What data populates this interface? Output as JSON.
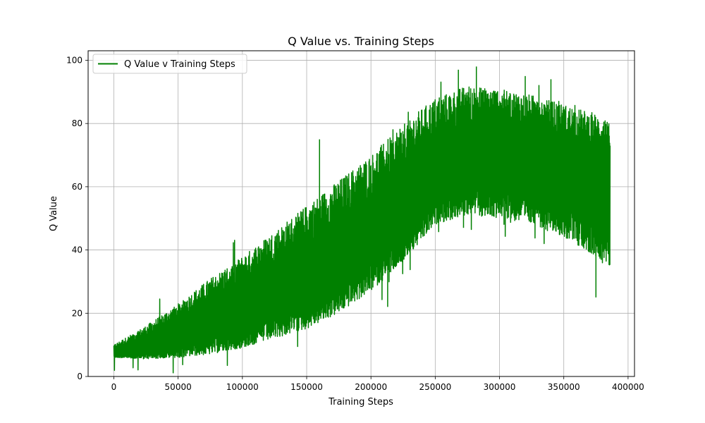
{
  "chart_data": {
    "type": "line",
    "title": "Q Value vs. Training Steps",
    "xlabel": "Training Steps",
    "ylabel": "Q Value",
    "xlim": [
      -20000,
      405000
    ],
    "ylim": [
      0,
      103
    ],
    "xticks": [
      0,
      50000,
      100000,
      150000,
      200000,
      250000,
      300000,
      350000,
      400000
    ],
    "yticks": [
      0,
      20,
      40,
      60,
      80,
      100
    ],
    "grid": true,
    "legend_position": "top-left",
    "series": [
      {
        "name": "Q Value v Training Steps",
        "color": "#008000",
        "x": [
          0,
          25000,
          50000,
          75000,
          100000,
          125000,
          150000,
          175000,
          200000,
          225000,
          250000,
          275000,
          300000,
          325000,
          350000,
          375000,
          386000
        ],
        "upper": [
          10,
          16,
          23,
          31,
          38,
          46,
          54,
          62,
          70,
          80,
          88,
          92,
          91,
          89,
          86,
          83,
          80
        ],
        "mean": [
          7.5,
          9,
          12,
          16,
          20,
          25,
          30,
          36,
          43,
          52,
          62,
          69,
          68,
          66,
          63,
          59,
          58
        ],
        "lower": [
          6,
          5.5,
          6,
          7,
          9,
          12,
          15,
          20,
          27,
          36,
          48,
          51,
          50,
          48,
          44,
          38,
          35
        ],
        "spike_high": 98,
        "spike_low": 22
      }
    ]
  }
}
